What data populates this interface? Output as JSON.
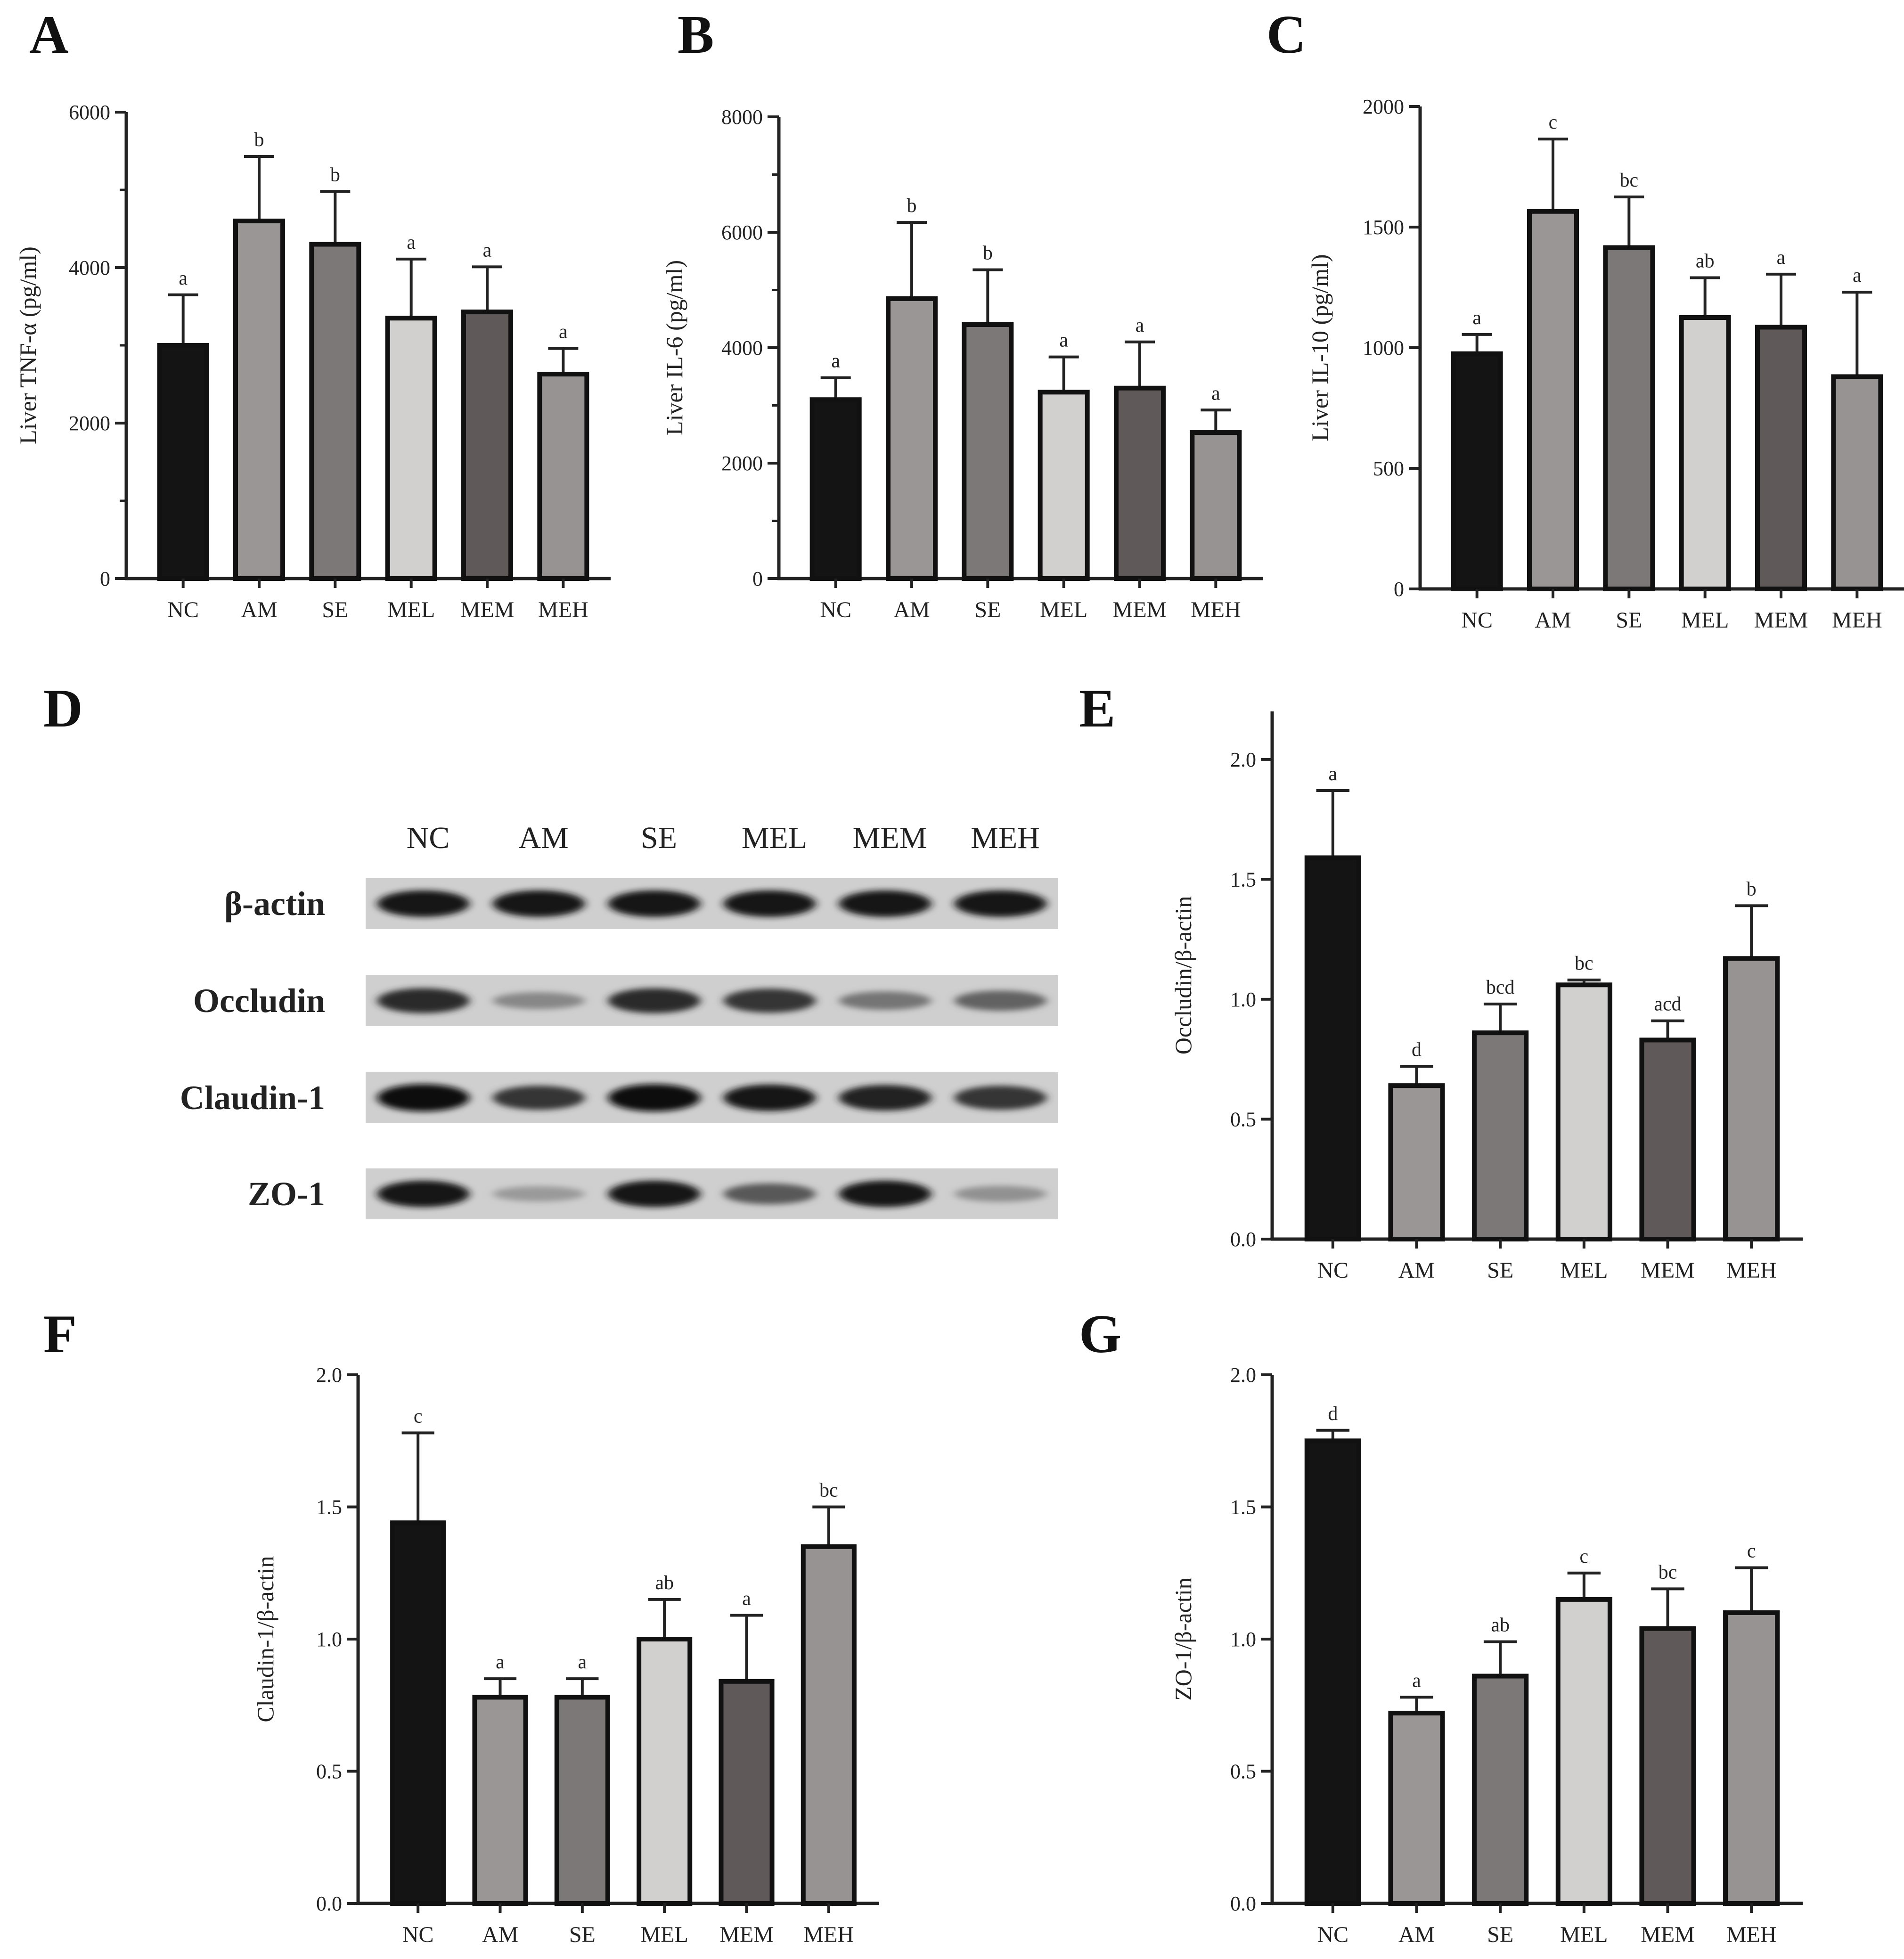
{
  "panels": {
    "A": "A",
    "B": "B",
    "C": "C",
    "D": "D",
    "E": "E",
    "F": "F",
    "G": "G"
  },
  "colors": [
    "#141414",
    "#9b9696",
    "#7d7878",
    "#d2cfcf",
    "#5f5959",
    "#979393"
  ],
  "blot": {
    "lanes": [
      "NC",
      "AM",
      "SE",
      "MEL",
      "MEM",
      "MEH"
    ],
    "rows": [
      {
        "label": "β-actin",
        "intensity": [
          0.95,
          0.95,
          0.95,
          0.95,
          0.95,
          0.95
        ]
      },
      {
        "label": "Occludin",
        "intensity": [
          0.85,
          0.35,
          0.85,
          0.8,
          0.45,
          0.55
        ]
      },
      {
        "label": "Claudin-1",
        "intensity": [
          1.0,
          0.8,
          1.0,
          0.95,
          0.9,
          0.8
        ]
      },
      {
        "label": "ZO-1",
        "intensity": [
          0.95,
          0.25,
          0.95,
          0.6,
          0.95,
          0.3
        ]
      }
    ]
  },
  "chart_data": [
    {
      "id": "A",
      "type": "bar",
      "categories": [
        "NC",
        "AM",
        "SE",
        "MEL",
        "MEM",
        "MEH"
      ],
      "values": [
        3000,
        4600,
        4300,
        3350,
        3430,
        2630
      ],
      "errors": [
        650,
        830,
        680,
        760,
        580,
        330
      ],
      "letters": [
        "a",
        "b",
        "b",
        "a",
        "a",
        "a"
      ],
      "ylabel": "Liver TNF-α (pg/ml)",
      "ylim": [
        0,
        6000
      ],
      "yticks": [
        0,
        2000,
        4000,
        6000
      ],
      "minor_ticks": 1
    },
    {
      "id": "B",
      "type": "bar",
      "categories": [
        "NC",
        "AM",
        "SE",
        "MEL",
        "MEM",
        "MEH"
      ],
      "values": [
        3100,
        4850,
        4400,
        3230,
        3300,
        2530
      ],
      "errors": [
        380,
        1320,
        950,
        610,
        800,
        390
      ],
      "letters": [
        "a",
        "b",
        "b",
        "a",
        "a",
        "a"
      ],
      "ylabel": "Liver IL-6 (pg/ml)",
      "ylim": [
        0,
        8000
      ],
      "yticks": [
        0,
        2000,
        4000,
        6000,
        8000
      ],
      "minor_ticks": 1
    },
    {
      "id": "C",
      "type": "bar",
      "categories": [
        "NC",
        "AM",
        "SE",
        "MEL",
        "MEM",
        "MEH"
      ],
      "values": [
        975,
        1565,
        1415,
        1125,
        1085,
        880
      ],
      "errors": [
        80,
        300,
        210,
        165,
        220,
        350
      ],
      "letters": [
        "a",
        "c",
        "bc",
        "ab",
        "a",
        "a"
      ],
      "ylabel": "Liver IL-10 (pg/ml)",
      "ylim": [
        0,
        2000
      ],
      "yticks": [
        0,
        500,
        1000,
        1500,
        2000
      ],
      "minor_ticks": 0
    },
    {
      "id": "E",
      "type": "bar",
      "categories": [
        "NC",
        "AM",
        "SE",
        "MEL",
        "MEM",
        "MEH"
      ],
      "values": [
        1.59,
        0.64,
        0.86,
        1.06,
        0.83,
        1.17
      ],
      "errors": [
        0.28,
        0.08,
        0.12,
        0.02,
        0.08,
        0.22
      ],
      "letters": [
        "a",
        "d",
        "bcd",
        "bc",
        "acd",
        "b"
      ],
      "ylabel": "Occludin/β-actin",
      "ylim": [
        0,
        2.2
      ],
      "yticks": [
        "0.0",
        "0.5",
        "1.0",
        "1.5",
        "2.0"
      ],
      "minor_ticks": 0
    },
    {
      "id": "F",
      "type": "bar",
      "categories": [
        "NC",
        "AM",
        "SE",
        "MEL",
        "MEM",
        "MEH"
      ],
      "values": [
        1.44,
        0.78,
        0.78,
        1.0,
        0.84,
        1.35
      ],
      "errors": [
        0.34,
        0.07,
        0.07,
        0.15,
        0.25,
        0.15
      ],
      "letters": [
        "c",
        "a",
        "a",
        "ab",
        "a",
        "bc"
      ],
      "ylabel": "Claudin-1/β-actin",
      "ylim": [
        0,
        2.0
      ],
      "yticks": [
        "0.0",
        "0.5",
        "1.0",
        "1.5",
        "2.0"
      ],
      "minor_ticks": 0
    },
    {
      "id": "G",
      "type": "bar",
      "categories": [
        "NC",
        "AM",
        "SE",
        "MEL",
        "MEM",
        "MEH"
      ],
      "values": [
        1.75,
        0.72,
        0.86,
        1.15,
        1.04,
        1.1
      ],
      "errors": [
        0.04,
        0.06,
        0.13,
        0.1,
        0.15,
        0.17
      ],
      "letters": [
        "d",
        "a",
        "ab",
        "c",
        "bc",
        "c"
      ],
      "ylabel": "ZO-1/β-actin",
      "ylim": [
        0,
        2.0
      ],
      "yticks": [
        "0.0",
        "0.5",
        "1.0",
        "1.5",
        "2.0"
      ],
      "minor_ticks": 0
    }
  ]
}
